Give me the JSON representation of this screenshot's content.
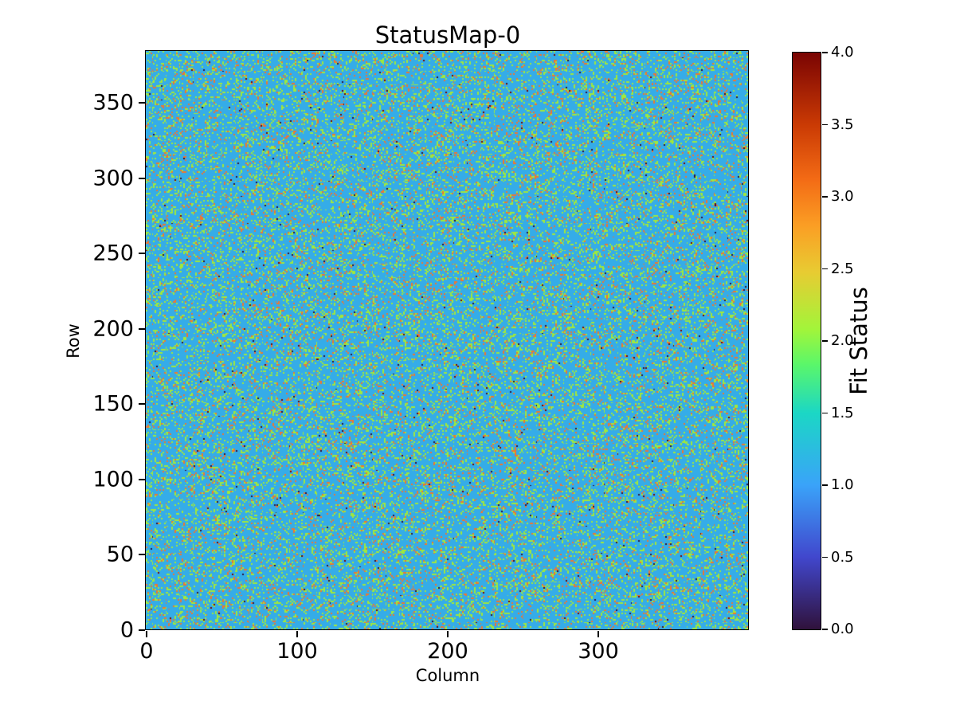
{
  "figure": {
    "background_color": "#ffffff"
  },
  "chart_data": {
    "type": "heatmap",
    "title": "StatusMap-0",
    "xlabel": "Column",
    "ylabel": "Row",
    "xlim": [
      0,
      400
    ],
    "ylim": [
      0,
      384
    ],
    "grid": {
      "cols": 400,
      "rows": 384
    },
    "x_ticks": [
      0,
      100,
      200,
      300
    ],
    "y_ticks": [
      0,
      50,
      100,
      150,
      200,
      250,
      300,
      350
    ],
    "cell_rendering": "nearest-neighbor, discrete status codes",
    "value_distribution": {
      "0": 0.003,
      "1": 0.7755,
      "2": 0.158,
      "3": 0.062,
      "4": 0.0015
    },
    "value_colors": {
      "0": "#30123b",
      "1": "#35ace8",
      "2": "#a0e83c",
      "3": "#ee7631",
      "4": "#7a0403"
    },
    "rng_seed": 42,
    "colorbar": {
      "label": "Fit Status",
      "min": 0.0,
      "max": 4.0,
      "tick_labels": [
        "0.0",
        "0.5",
        "1.0",
        "1.5",
        "2.0",
        "2.5",
        "3.0",
        "3.5",
        "4.0"
      ],
      "colormap": "turbo",
      "gradient_stops": [
        [
          0.0,
          "#30123b"
        ],
        [
          0.125,
          "#4147cd"
        ],
        [
          0.25,
          "#3aa3f9"
        ],
        [
          0.375,
          "#1bd7c5"
        ],
        [
          0.46,
          "#5bf769"
        ],
        [
          0.52,
          "#a2f53a"
        ],
        [
          0.62,
          "#e8cb32"
        ],
        [
          0.7,
          "#fb9e24"
        ],
        [
          0.78,
          "#f36b15"
        ],
        [
          0.875,
          "#ca3a04"
        ],
        [
          1.0,
          "#7a0403"
        ]
      ]
    }
  }
}
